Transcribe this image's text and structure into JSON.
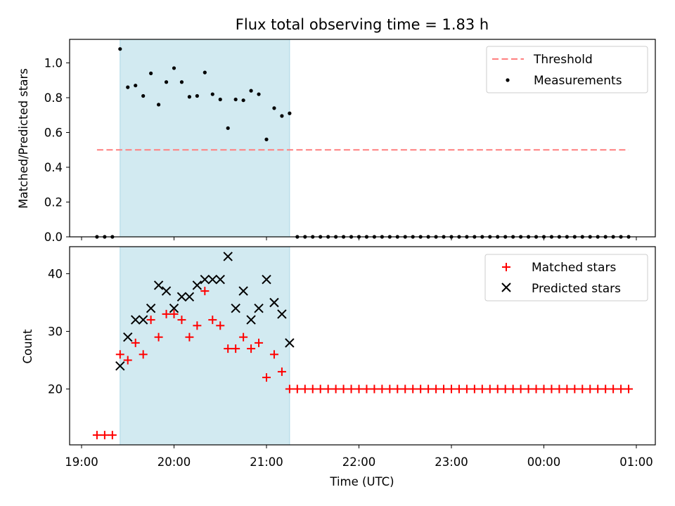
{
  "chart_data": [
    {
      "type": "scatter",
      "title": "Flux total observing time = 1.83 h",
      "xlabel": "",
      "ylabel": "Matched/Predicted stars",
      "ylim": [
        0,
        1.13
      ],
      "yticks": [
        "0.0",
        "0.2",
        "0.4",
        "0.6",
        "0.8",
        "1.0"
      ],
      "legend_position": "upper right",
      "shaded_region": {
        "x_start": "19:25",
        "x_end": "21:15",
        "color": "#add8e6"
      },
      "threshold": {
        "name": "Threshold",
        "value": 0.5,
        "x_start": "19:10",
        "x_end": "00:55",
        "color": "#ff7f7f"
      },
      "series": [
        {
          "name": "Measurements",
          "color": "#000000",
          "x": [
            "19:10",
            "19:15",
            "19:20",
            "19:25",
            "19:30",
            "19:35",
            "19:40",
            "19:45",
            "19:50",
            "19:55",
            "20:00",
            "20:05",
            "20:10",
            "20:15",
            "20:20",
            "20:25",
            "20:30",
            "20:35",
            "20:40",
            "20:45",
            "20:50",
            "20:55",
            "21:00",
            "21:05",
            "21:10",
            "21:15",
            "21:20",
            "21:25",
            "21:30",
            "21:35",
            "21:40",
            "21:45",
            "21:50",
            "21:55",
            "22:00",
            "22:05",
            "22:10",
            "22:15",
            "22:20",
            "22:25",
            "22:30",
            "22:35",
            "22:40",
            "22:45",
            "22:50",
            "22:55",
            "23:00",
            "23:05",
            "23:10",
            "23:15",
            "23:20",
            "23:25",
            "23:30",
            "23:35",
            "23:40",
            "23:45",
            "23:50",
            "23:55",
            "00:00",
            "00:05",
            "00:10",
            "00:15",
            "00:20",
            "00:25",
            "00:30",
            "00:35",
            "00:40",
            "00:45",
            "00:50",
            "00:55"
          ],
          "values": [
            0,
            0,
            0,
            1.08,
            0.86,
            0.87,
            0.81,
            0.94,
            0.76,
            0.89,
            0.97,
            0.89,
            0.805,
            0.81,
            0.945,
            0.82,
            0.79,
            0.625,
            0.79,
            0.785,
            0.84,
            0.82,
            0.56,
            0.74,
            0.695,
            0.71,
            0,
            0,
            0,
            0,
            0,
            0,
            0,
            0,
            0,
            0,
            0,
            0,
            0,
            0,
            0,
            0,
            0,
            0,
            0,
            0,
            0,
            0,
            0,
            0,
            0,
            0,
            0,
            0,
            0,
            0,
            0,
            0,
            0,
            0,
            0,
            0,
            0,
            0,
            0,
            0,
            0,
            0,
            0,
            0
          ]
        }
      ]
    },
    {
      "type": "scatter",
      "title": "",
      "xlabel": "Time (UTC)",
      "ylabel": "Count",
      "ylim": [
        10.5,
        44.5
      ],
      "yticks": [
        "20",
        "30",
        "40"
      ],
      "xticks": [
        "19:00",
        "20:00",
        "21:00",
        "22:00",
        "23:00",
        "00:00",
        "01:00"
      ],
      "legend_position": "upper right",
      "shaded_region": {
        "x_start": "19:25",
        "x_end": "21:15",
        "color": "#add8e6"
      },
      "series": [
        {
          "name": "Matched stars",
          "marker": "+",
          "color": "#ff0000",
          "x": [
            "19:10",
            "19:15",
            "19:20",
            "19:25",
            "19:30",
            "19:35",
            "19:40",
            "19:45",
            "19:50",
            "19:55",
            "20:00",
            "20:05",
            "20:10",
            "20:15",
            "20:20",
            "20:25",
            "20:30",
            "20:35",
            "20:40",
            "20:45",
            "20:50",
            "20:55",
            "21:00",
            "21:05",
            "21:10",
            "21:15",
            "21:20",
            "21:25",
            "21:30",
            "21:35",
            "21:40",
            "21:45",
            "21:50",
            "21:55",
            "22:00",
            "22:05",
            "22:10",
            "22:15",
            "22:20",
            "22:25",
            "22:30",
            "22:35",
            "22:40",
            "22:45",
            "22:50",
            "22:55",
            "23:00",
            "23:05",
            "23:10",
            "23:15",
            "23:20",
            "23:25",
            "23:30",
            "23:35",
            "23:40",
            "23:45",
            "23:50",
            "23:55",
            "00:00",
            "00:05",
            "00:10",
            "00:15",
            "00:20",
            "00:25",
            "00:30",
            "00:35",
            "00:40",
            "00:45",
            "00:50",
            "00:55"
          ],
          "values": [
            12,
            12,
            12,
            26,
            25,
            28,
            26,
            32,
            29,
            33,
            33,
            32,
            29,
            31,
            37,
            32,
            31,
            27,
            27,
            29,
            27,
            28,
            22,
            26,
            23,
            20,
            20,
            20,
            20,
            20,
            20,
            20,
            20,
            20,
            20,
            20,
            20,
            20,
            20,
            20,
            20,
            20,
            20,
            20,
            20,
            20,
            20,
            20,
            20,
            20,
            20,
            20,
            20,
            20,
            20,
            20,
            20,
            20,
            20,
            20,
            20,
            20,
            20,
            20,
            20,
            20,
            20,
            20,
            20,
            20
          ]
        },
        {
          "name": "Predicted stars",
          "marker": "x",
          "color": "#000000",
          "x": [
            "19:25",
            "19:30",
            "19:35",
            "19:40",
            "19:45",
            "19:50",
            "19:55",
            "20:00",
            "20:05",
            "20:10",
            "20:15",
            "20:20",
            "20:25",
            "20:30",
            "20:35",
            "20:40",
            "20:45",
            "20:50",
            "20:55",
            "21:00",
            "21:05",
            "21:10",
            "21:15"
          ],
          "values": [
            24,
            29,
            32,
            32,
            34,
            38,
            37,
            34,
            36,
            36,
            38,
            39,
            39,
            39,
            43,
            34,
            37,
            32,
            34,
            39,
            35,
            33,
            28
          ]
        }
      ]
    }
  ]
}
